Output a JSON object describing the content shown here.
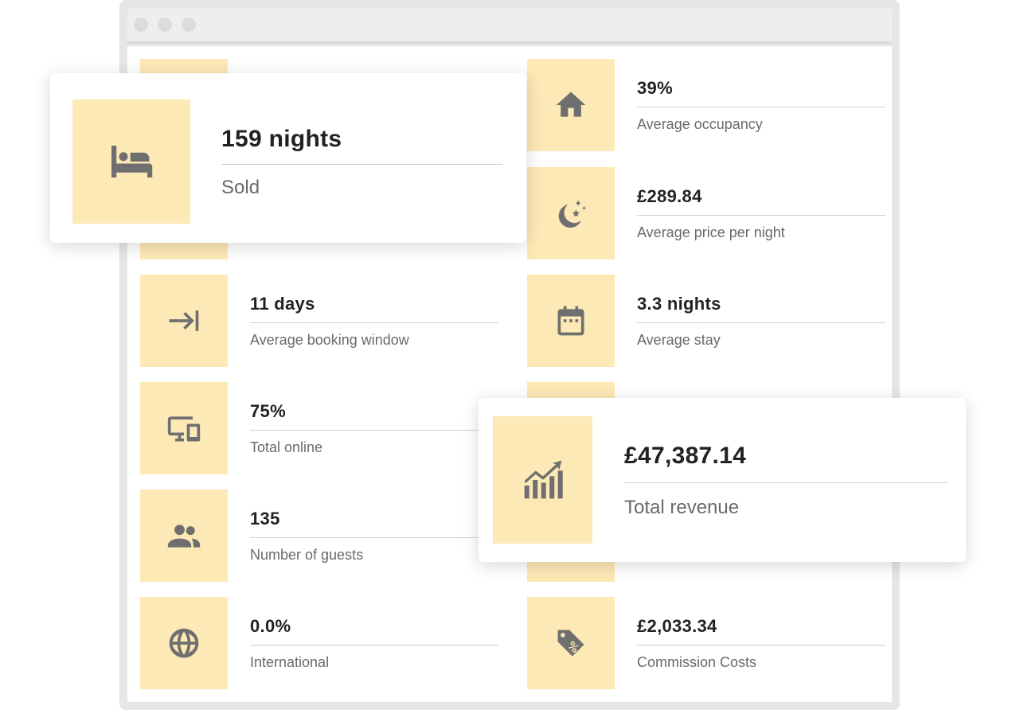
{
  "stats": [
    {
      "value": "",
      "label": "",
      "icon": "blank"
    },
    {
      "value": "39%",
      "label": "Average occupancy",
      "icon": "house-icon"
    },
    {
      "value": "",
      "label": "",
      "icon": "blank"
    },
    {
      "value": "£289.84",
      "label": "Average price per night",
      "icon": "moon-stars-icon"
    },
    {
      "value": "11 days",
      "label": "Average booking window",
      "icon": "arrow-to-line-icon"
    },
    {
      "value": "3.3 nights",
      "label": "Average stay",
      "icon": "calendar-icon"
    },
    {
      "value": "75%",
      "label": "Total online",
      "icon": "devices-icon"
    },
    {
      "value": "",
      "label": "",
      "icon": "blank"
    },
    {
      "value": "135",
      "label": "Number of guests",
      "icon": "people-icon"
    },
    {
      "value": "",
      "label": "",
      "icon": "blank"
    },
    {
      "value": "0.0%",
      "label": "International",
      "icon": "globe-icon"
    },
    {
      "value": "£2,033.34",
      "label": "Commission Costs",
      "icon": "price-tag-icon"
    }
  ],
  "highlight_nights": {
    "value": "159 nights",
    "label": "Sold",
    "icon": "bed-icon"
  },
  "highlight_revenue": {
    "value": "£47,387.14",
    "label": "Total revenue",
    "icon": "growth-chart-icon"
  },
  "colors": {
    "icon_tile": "#fde9b5",
    "icon": "#6f6f6f",
    "frame": "#e6e6e6"
  }
}
